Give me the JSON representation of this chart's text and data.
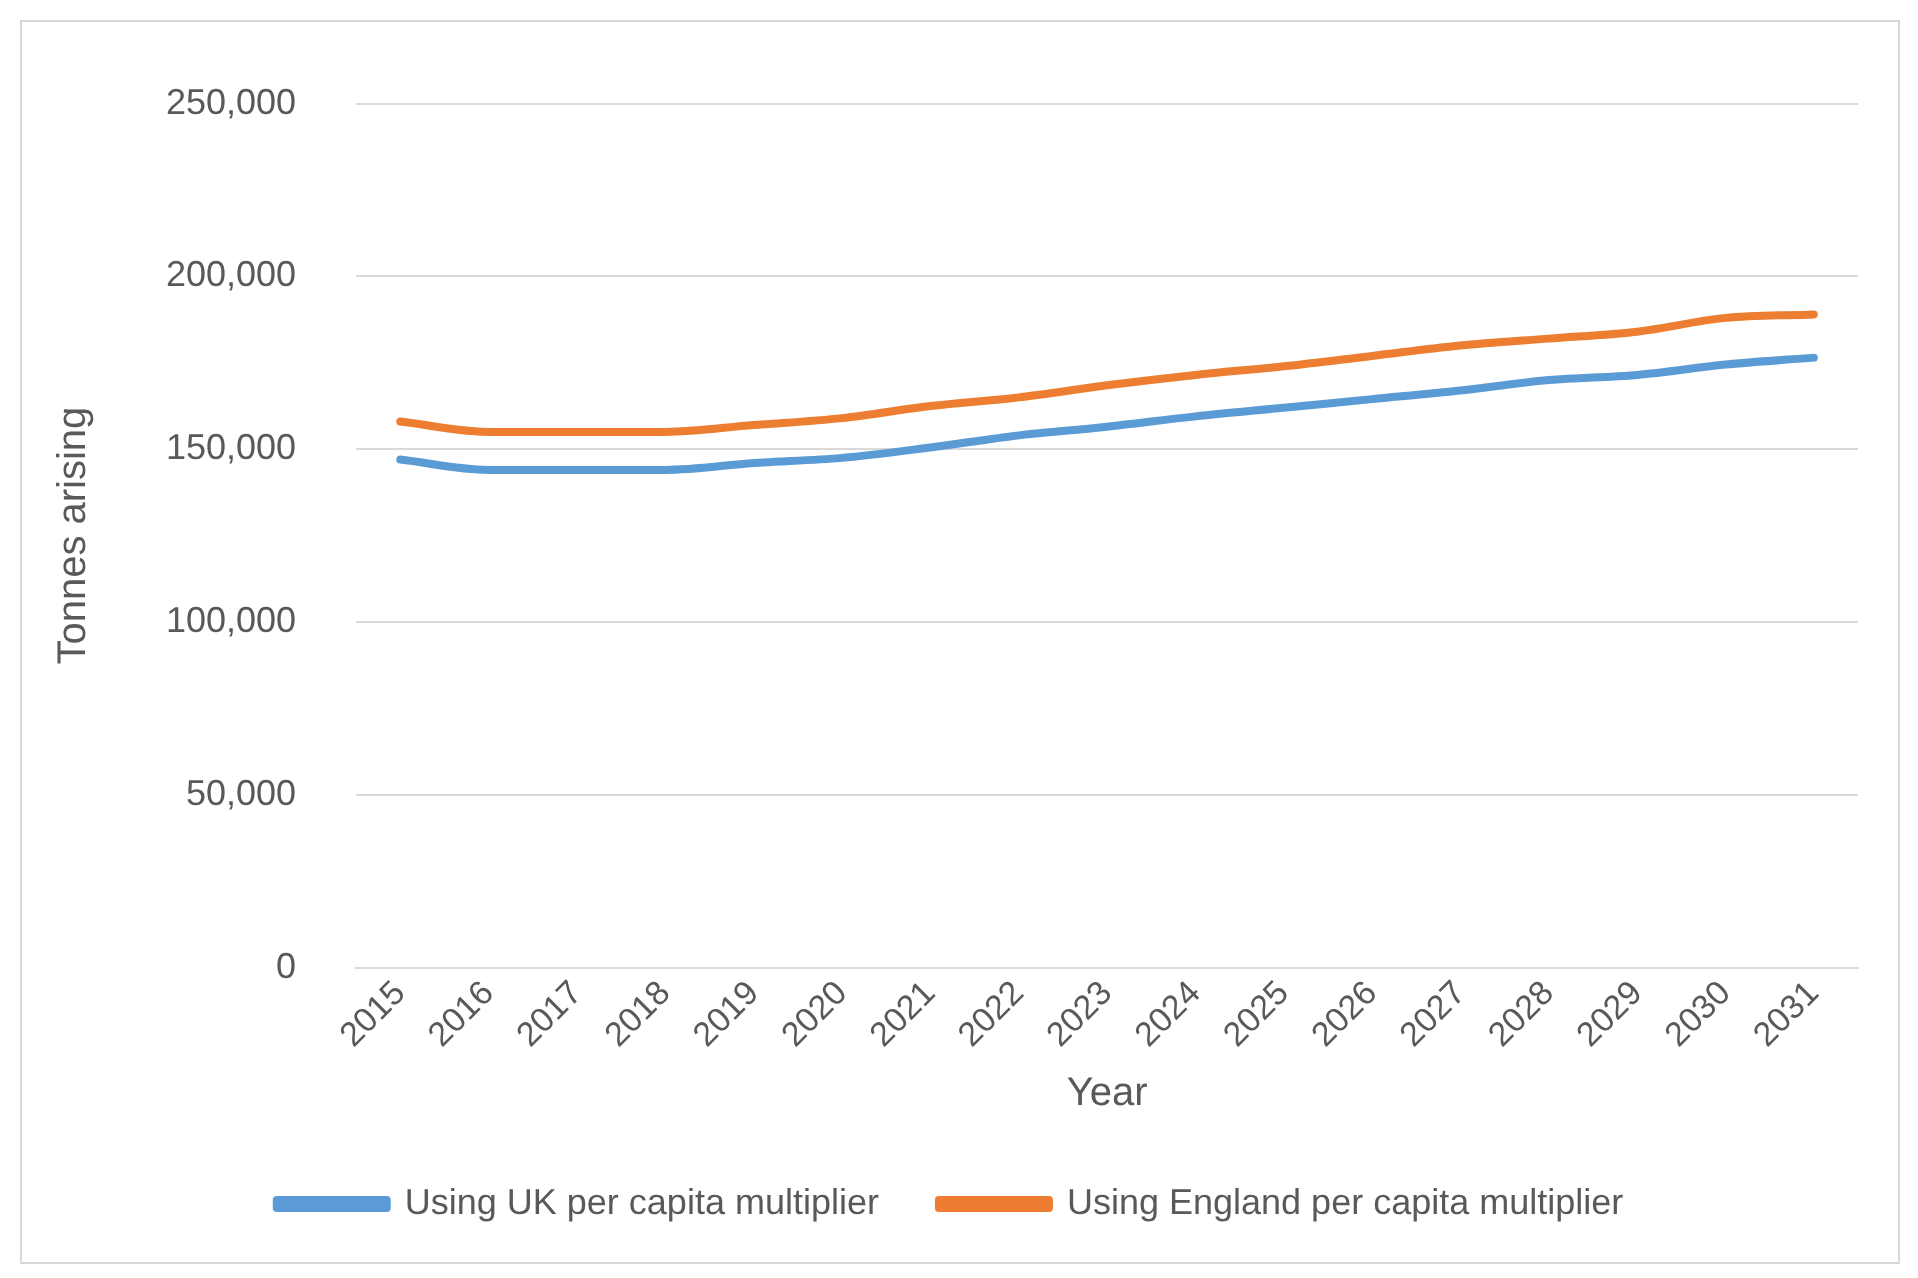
{
  "chart_data": {
    "type": "line",
    "xlabel": "Year",
    "ylabel": "Tonnes arising",
    "categories": [
      "2015",
      "2016",
      "2017",
      "2018",
      "2019",
      "2020",
      "2021",
      "2022",
      "2023",
      "2024",
      "2025",
      "2026",
      "2027",
      "2028",
      "2029",
      "2030",
      "2031"
    ],
    "ylim": [
      0,
      250000
    ],
    "yticks": [
      0,
      {
        "value": 50000,
        "label": "50,000"
      },
      {
        "value": 100000,
        "label": "100,000"
      },
      {
        "value": 150000,
        "label": "150,000"
      },
      {
        "value": 200000,
        "label": "200,000"
      },
      {
        "value": 250000,
        "label": "250,000"
      }
    ],
    "grid": "y",
    "legend": "bottom",
    "marker": "none",
    "line_style": "solid",
    "series": [
      {
        "name": "Using UK per capita multiplier",
        "color": "#5b9bd5",
        "values": [
          147000,
          144000,
          144000,
          144000,
          146000,
          147500,
          150500,
          154000,
          156500,
          159500,
          162000,
          164500,
          167000,
          170000,
          171500,
          174500,
          176500
        ]
      },
      {
        "name": "Using England per capita multiplier",
        "color": "#ed7d31",
        "values": [
          158000,
          155000,
          155000,
          155000,
          157000,
          159000,
          162500,
          165000,
          168500,
          171500,
          174000,
          177000,
          180000,
          182000,
          184000,
          188000,
          189000
        ]
      }
    ]
  }
}
